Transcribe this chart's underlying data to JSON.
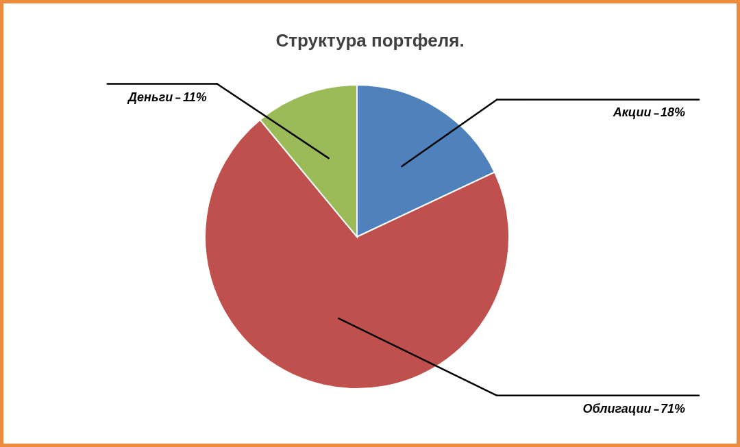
{
  "chart_data": {
    "type": "pie",
    "title": "Структура портфеля.",
    "categories": [
      "Акции",
      "Облигации",
      "Деньги"
    ],
    "values": [
      18,
      71,
      11
    ],
    "colors": [
      "#4f81bd",
      "#c0504d",
      "#9bbb59"
    ],
    "value_labels": [
      "18%",
      "71%",
      "11%"
    ]
  }
}
